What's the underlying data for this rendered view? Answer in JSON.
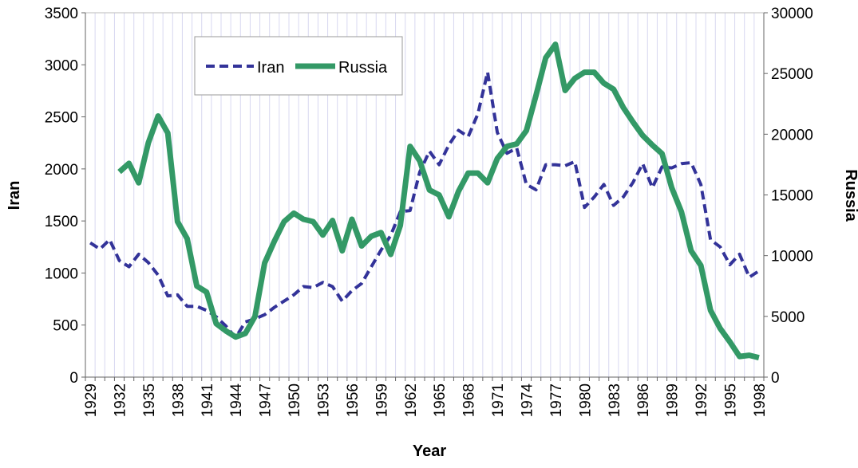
{
  "chart_data": {
    "type": "line",
    "xlabel": "Year",
    "ylabel_left": "Iran",
    "ylabel_right": "Russia",
    "ylim_left": [
      0,
      3500
    ],
    "ylim_right": [
      0,
      30000
    ],
    "yticks_left": [
      0,
      500,
      1000,
      1500,
      2000,
      2500,
      3000,
      3500
    ],
    "yticks_right": [
      0,
      5000,
      10000,
      15000,
      20000,
      25000,
      30000
    ],
    "xticks": [
      "1929",
      "1932",
      "1935",
      "1938",
      "1941",
      "1944",
      "1947",
      "1950",
      "1953",
      "1956",
      "1959",
      "1962",
      "1965",
      "1968",
      "1971",
      "1974",
      "1977",
      "1980",
      "1983",
      "1986",
      "1989",
      "1992",
      "1995",
      "1998"
    ],
    "grid": "vertical",
    "legend_position": "top-left",
    "x": [
      1929,
      1930,
      1931,
      1932,
      1933,
      1934,
      1935,
      1936,
      1937,
      1938,
      1939,
      1940,
      1941,
      1942,
      1943,
      1944,
      1945,
      1946,
      1947,
      1948,
      1949,
      1950,
      1951,
      1952,
      1953,
      1954,
      1955,
      1956,
      1957,
      1958,
      1959,
      1960,
      1961,
      1962,
      1963,
      1964,
      1965,
      1966,
      1967,
      1968,
      1969,
      1970,
      1971,
      1972,
      1973,
      1974,
      1975,
      1976,
      1977,
      1978,
      1979,
      1980,
      1981,
      1982,
      1983,
      1984,
      1985,
      1986,
      1987,
      1988,
      1989,
      1990,
      1991,
      1992,
      1993,
      1994,
      1995,
      1996,
      1997,
      1998
    ],
    "series": [
      {
        "name": "Iran",
        "axis": "left",
        "color": "#333399",
        "style": "dashed",
        "values": [
          1290,
          1230,
          1320,
          1120,
          1060,
          1180,
          1100,
          980,
          780,
          790,
          680,
          680,
          640,
          580,
          490,
          380,
          530,
          560,
          600,
          670,
          730,
          790,
          870,
          860,
          910,
          870,
          730,
          830,
          900,
          1060,
          1220,
          1360,
          1590,
          1600,
          1970,
          2170,
          2040,
          2230,
          2370,
          2310,
          2530,
          2930,
          2350,
          2150,
          2200,
          1850,
          1800,
          2040,
          2040,
          2030,
          2070,
          1630,
          1730,
          1850,
          1650,
          1730,
          1870,
          2050,
          1820,
          2020,
          2010,
          2050,
          2060,
          1850,
          1320,
          1250,
          1080,
          1180,
          960,
          1020
        ]
      },
      {
        "name": "Russia",
        "axis": "right",
        "color": "#339966",
        "style": "solid",
        "values": [
          null,
          null,
          null,
          16900,
          17600,
          16000,
          19300,
          21500,
          20100,
          12800,
          11400,
          7500,
          7000,
          4400,
          3800,
          3300,
          3600,
          5000,
          9400,
          11200,
          12800,
          13500,
          13000,
          12800,
          11700,
          12900,
          10400,
          13000,
          10800,
          11600,
          11900,
          10100,
          12500,
          19000,
          17800,
          15400,
          15000,
          13200,
          15300,
          16800,
          16800,
          16000,
          18000,
          19000,
          19200,
          20300,
          23200,
          26300,
          27400,
          23600,
          24600,
          25100,
          25100,
          24200,
          23700,
          22200,
          21000,
          19900,
          19100,
          18400,
          15600,
          13600,
          10400,
          9200,
          5500,
          4000,
          2900,
          1700,
          1800,
          1600
        ]
      }
    ]
  }
}
